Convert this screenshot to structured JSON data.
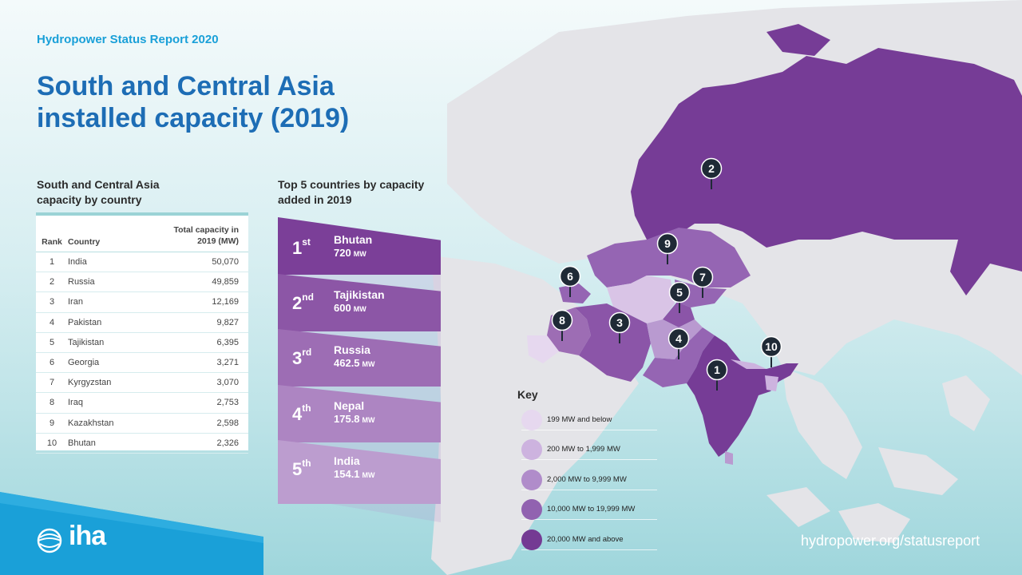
{
  "header": {
    "report_label": "Hydropower Status Report 2020",
    "title": "South and Central Asia installed capacity (2019)"
  },
  "table": {
    "heading": "South and Central Asia capacity by country",
    "columns": {
      "rank": "Rank",
      "country": "Country",
      "capacity": "Total capacity in 2019 (MW)"
    },
    "rows": [
      {
        "rank": "1",
        "country": "India",
        "capacity": "50,070"
      },
      {
        "rank": "2",
        "country": "Russia",
        "capacity": "49,859"
      },
      {
        "rank": "3",
        "country": "Iran",
        "capacity": "12,169"
      },
      {
        "rank": "4",
        "country": "Pakistan",
        "capacity": "9,827"
      },
      {
        "rank": "5",
        "country": "Tajikistan",
        "capacity": "6,395"
      },
      {
        "rank": "6",
        "country": "Georgia",
        "capacity": "3,271"
      },
      {
        "rank": "7",
        "country": "Kyrgyzstan",
        "capacity": "3,070"
      },
      {
        "rank": "8",
        "country": "Iraq",
        "capacity": "2,753"
      },
      {
        "rank": "9",
        "country": "Kazakhstan",
        "capacity": "2,598"
      },
      {
        "rank": "10",
        "country": "Bhutan",
        "capacity": "2,326"
      }
    ]
  },
  "top5": {
    "heading": "Top 5 countries by capacity added in 2019",
    "items": [
      {
        "ord": "1",
        "suffix": "st",
        "country": "Bhutan",
        "value": "720",
        "unit": "MW",
        "color": "#7b3f98"
      },
      {
        "ord": "2",
        "suffix": "nd",
        "country": "Tajikistan",
        "value": "600",
        "unit": "MW",
        "color": "#8c56a6"
      },
      {
        "ord": "3",
        "suffix": "rd",
        "country": "Russia",
        "value": "462.5",
        "unit": "MW",
        "color": "#9d6db4"
      },
      {
        "ord": "4",
        "suffix": "th",
        "country": "Nepal",
        "value": "175.8",
        "unit": "MW",
        "color": "#ad85c2"
      },
      {
        "ord": "5",
        "suffix": "th",
        "country": "India",
        "value": "154.1",
        "unit": "MW",
        "color": "#bc9dcf"
      }
    ]
  },
  "key": {
    "title": "Key",
    "items": [
      {
        "label": "199 MW and below",
        "color": "#e6d8ef"
      },
      {
        "label": "200 MW to 1,999 MW",
        "color": "#cdb3df"
      },
      {
        "label": "2,000 MW to 9,999 MW",
        "color": "#b08cca"
      },
      {
        "label": "10,000 MW to 19,999 MW",
        "color": "#9162b0"
      },
      {
        "label": "20,000 MW and above",
        "color": "#743a93"
      }
    ]
  },
  "map_pins": [
    {
      "label": "1",
      "country": "India"
    },
    {
      "label": "2",
      "country": "Russia"
    },
    {
      "label": "3",
      "country": "Iran"
    },
    {
      "label": "4",
      "country": "Pakistan"
    },
    {
      "label": "5",
      "country": "Tajikistan"
    },
    {
      "label": "6",
      "country": "Georgia"
    },
    {
      "label": "7",
      "country": "Kyrgyzstan"
    },
    {
      "label": "8",
      "country": "Iraq"
    },
    {
      "label": "9",
      "country": "Kazakhstan"
    },
    {
      "label": "10",
      "country": "Bhutan"
    }
  ],
  "footer": {
    "logo_text": "iha",
    "url": "hydropower.org/statusreport"
  },
  "colors": {
    "title_blue": "#1d6db5",
    "label_blue": "#1aa0d8",
    "land_grey": "#e3e3e6",
    "pin": "#1f2a36"
  }
}
